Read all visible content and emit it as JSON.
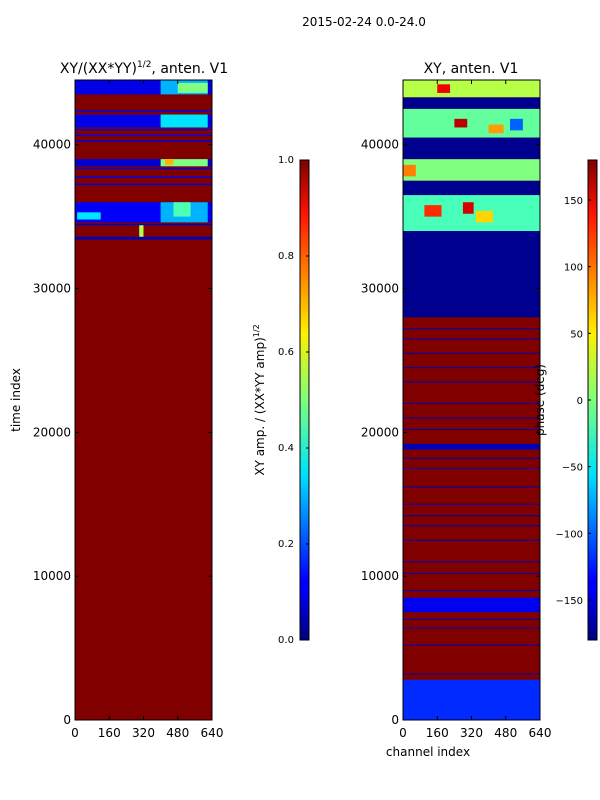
{
  "figure_title": "2015-02-24 0.0-24.0",
  "chart_data": [
    {
      "type": "heatmap",
      "title_main": "XY/(XX*YY)",
      "title_sup": "1/2",
      "title_tail": ", anten. V1",
      "xlabel": "",
      "ylabel": "time index",
      "xlim": [
        0,
        640
      ],
      "ylim": [
        0,
        44500
      ],
      "xticks": [
        "0",
        "160",
        "320",
        "480",
        "640"
      ],
      "yticks": [
        "0",
        "10000",
        "20000",
        "30000",
        "40000"
      ],
      "colorbar": {
        "label_main": "XY amp. / (XX*YY amp)",
        "label_sup": "1/2",
        "range": [
          0.0,
          1.0
        ],
        "ticks": [
          "0.0",
          "0.2",
          "0.4",
          "0.6",
          "0.8",
          "1.0"
        ]
      },
      "background_value": 1.0,
      "bands": [
        {
          "y0": 33400,
          "y1": 33600,
          "value": 0.05
        },
        {
          "y0": 34400,
          "y1": 34500,
          "value": 0.05
        },
        {
          "y0": 37200,
          "y1": 37300,
          "value": 0.1
        },
        {
          "y0": 37700,
          "y1": 37800,
          "value": 0.1
        },
        {
          "y0": 38300,
          "y1": 38400,
          "value": 0.1
        },
        {
          "y0": 40200,
          "y1": 40300,
          "value": 0.1
        },
        {
          "y0": 40600,
          "y1": 40700,
          "value": 0.1
        },
        {
          "y0": 41000,
          "y1": 41100,
          "value": 0.1
        },
        {
          "y0": 41500,
          "y1": 41600,
          "value": 0.1
        },
        {
          "y0": 42300,
          "y1": 42400,
          "value": 0.1
        },
        {
          "y0": 43500,
          "y1": 44500,
          "value": 0.1
        },
        {
          "y0": 34600,
          "y1": 36000,
          "value": 0.12
        },
        {
          "y0": 38500,
          "y1": 39000,
          "value": 0.08
        },
        {
          "y0": 41200,
          "y1": 42100,
          "value": 0.1
        }
      ],
      "patches": [
        {
          "x0": 400,
          "x1": 620,
          "y0": 34600,
          "y1": 36000,
          "value": 0.3
        },
        {
          "x0": 460,
          "x1": 540,
          "y0": 35000,
          "y1": 36000,
          "value": 0.45
        },
        {
          "x0": 10,
          "x1": 120,
          "y0": 34800,
          "y1": 35300,
          "value": 0.35
        },
        {
          "x0": 400,
          "x1": 620,
          "y0": 38500,
          "y1": 39000,
          "value": 0.5
        },
        {
          "x0": 420,
          "x1": 460,
          "y0": 38600,
          "y1": 39000,
          "value": 0.7
        },
        {
          "x0": 400,
          "x1": 620,
          "y0": 41200,
          "y1": 42100,
          "value": 0.35
        },
        {
          "x0": 400,
          "x1": 620,
          "y0": 43500,
          "y1": 44500,
          "value": 0.3
        },
        {
          "x0": 480,
          "x1": 620,
          "y0": 43600,
          "y1": 44300,
          "value": 0.5
        },
        {
          "x0": 300,
          "x1": 320,
          "y0": 33600,
          "y1": 34400,
          "value": 0.55
        }
      ]
    },
    {
      "type": "heatmap",
      "title": "XY, anten. V1",
      "xlabel": "channel index",
      "ylabel": "",
      "xlim": [
        0,
        640
      ],
      "ylim": [
        0,
        44500
      ],
      "xticks": [
        "0",
        "160",
        "320",
        "480",
        "640"
      ],
      "yticks": [
        "0",
        "10000",
        "20000",
        "30000",
        "40000"
      ],
      "colorbar": {
        "label": "phase (deg)",
        "range": [
          -180,
          180
        ],
        "ticks": [
          "150",
          "100",
          "50",
          "0",
          "−50",
          "−100",
          "−150"
        ],
        "tick_values": [
          150,
          100,
          50,
          0,
          -50,
          -100,
          -150
        ]
      },
      "background_value": 180,
      "bands": [
        {
          "y0": 0,
          "y1": 2800,
          "value": -120
        },
        {
          "y0": 7500,
          "y1": 8500,
          "value": -140
        },
        {
          "y0": 18800,
          "y1": 19200,
          "value": -160
        },
        {
          "y0": 28000,
          "y1": 34000,
          "value": -175
        },
        {
          "y0": 34000,
          "y1": 36500,
          "value": -20
        },
        {
          "y0": 36500,
          "y1": 37500,
          "value": -175
        },
        {
          "y0": 37500,
          "y1": 39000,
          "value": 0
        },
        {
          "y0": 39000,
          "y1": 40500,
          "value": -175
        },
        {
          "y0": 40500,
          "y1": 42500,
          "value": -10
        },
        {
          "y0": 42500,
          "y1": 43300,
          "value": -175
        },
        {
          "y0": 43300,
          "y1": 44500,
          "value": 20
        }
      ],
      "thin_lines_y": [
        3200,
        5200,
        6400,
        7000,
        9000,
        10200,
        11000,
        12500,
        13500,
        14200,
        15000,
        16200,
        17500,
        18200,
        20200,
        21000,
        22000,
        23500,
        24500,
        25500,
        26500,
        27200
      ],
      "patches": [
        {
          "x0": 100,
          "x1": 180,
          "y0": 35000,
          "y1": 35800,
          "value": 120
        },
        {
          "x0": 280,
          "x1": 330,
          "y0": 35200,
          "y1": 36000,
          "value": 150
        },
        {
          "x0": 340,
          "x1": 420,
          "y0": 34600,
          "y1": 35400,
          "value": 60
        },
        {
          "x0": 0,
          "x1": 60,
          "y0": 37800,
          "y1": 38600,
          "value": 90
        },
        {
          "x0": 240,
          "x1": 300,
          "y0": 41200,
          "y1": 41800,
          "value": 160
        },
        {
          "x0": 500,
          "x1": 560,
          "y0": 41000,
          "y1": 41800,
          "value": -100
        },
        {
          "x0": 160,
          "x1": 220,
          "y0": 43600,
          "y1": 44200,
          "value": 140
        },
        {
          "x0": 400,
          "x1": 470,
          "y0": 40800,
          "y1": 41400,
          "value": 80
        }
      ]
    }
  ]
}
